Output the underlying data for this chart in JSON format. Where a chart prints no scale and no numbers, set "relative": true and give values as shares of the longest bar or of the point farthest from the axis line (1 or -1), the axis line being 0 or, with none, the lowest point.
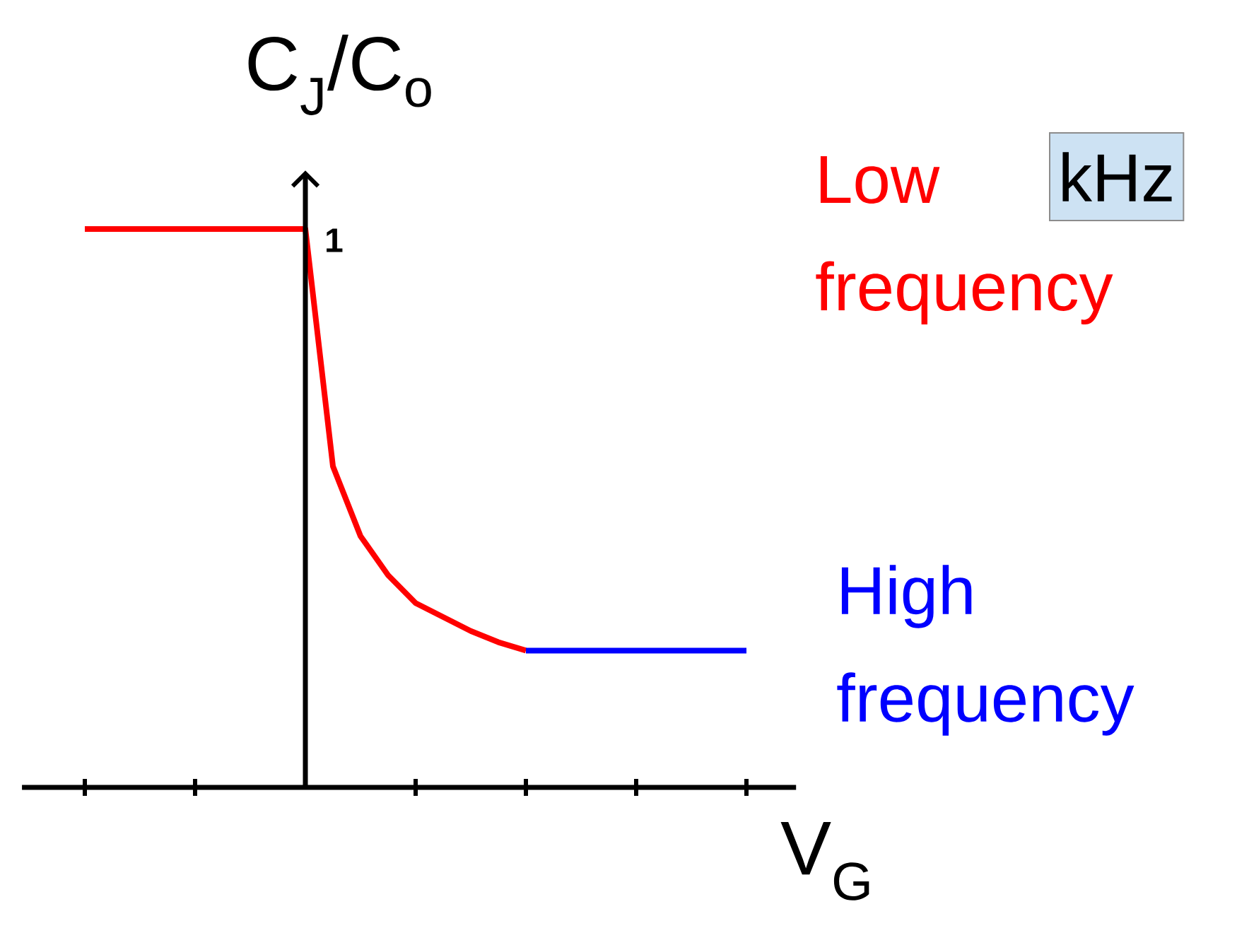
{
  "chart_data": {
    "type": "line",
    "relative": true,
    "xlabel": "V$_{G}$",
    "ylabel": "C$_{J}$/C$_{o}$",
    "categories": [
      null,
      null,
      null,
      null,
      null,
      null,
      null,
      null,
      null,
      null,
      null,
      null,
      null,
      null,
      null,
      null,
      null,
      null,
      null,
      null,
      null,
      null,
      null,
      null,
      null
    ],
    "series": [
      {
        "name": "Low frequency",
        "color": "#ff0000",
        "values": [
          1,
          1,
          1,
          1,
          1,
          1,
          1,
          1,
          1,
          0.575,
          0.45,
          0.38,
          0.33,
          0.305,
          0.28,
          0.26,
          0.245,
          null,
          null,
          null,
          null,
          null,
          null,
          null,
          null
        ]
      },
      {
        "name": "High frequency",
        "color": "#0000ff",
        "values": [
          null,
          null,
          null,
          null,
          null,
          null,
          null,
          null,
          null,
          null,
          null,
          null,
          null,
          null,
          null,
          null,
          0.245,
          0.245,
          0.245,
          0.245,
          0.245,
          0.245,
          0.245,
          0.245,
          0.245
        ]
      }
    ],
    "annotations": [
      "1",
      "kHz"
    ],
    "legend": "right",
    "marker": "none",
    "line_style": "solid"
  }
}
